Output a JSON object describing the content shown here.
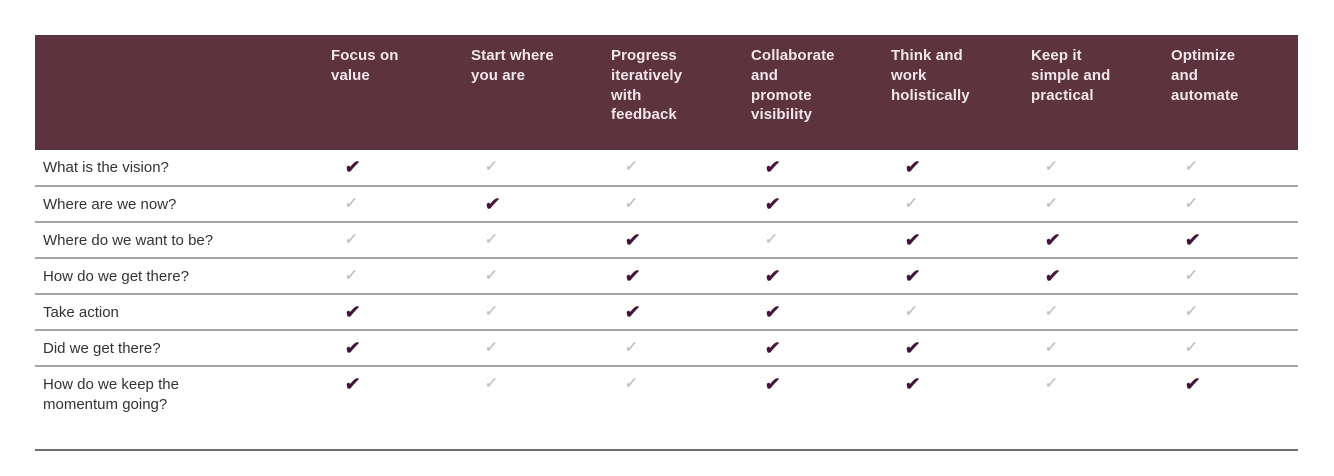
{
  "table": {
    "corner_label": "",
    "columns": [
      "Focus on\nvalue",
      "Start where\nyou are",
      "Progress\niteratively\nwith\nfeedback",
      "Collaborate\nand\npromote\nvisibility",
      "Think and\nwork\nholistically",
      "Keep it\nsimple and\npractical",
      "Optimize\nand\nautomate"
    ],
    "rows": [
      {
        "label": "What is the vision?",
        "checks": [
          "strong",
          "weak",
          "weak",
          "strong",
          "strong",
          "weak",
          "weak"
        ]
      },
      {
        "label": "Where are we now?",
        "checks": [
          "weak",
          "strong",
          "weak",
          "strong",
          "weak",
          "weak",
          "weak"
        ]
      },
      {
        "label": "Where do we want to be?",
        "checks": [
          "weak",
          "weak",
          "strong",
          "weak",
          "strong",
          "strong",
          "strong"
        ]
      },
      {
        "label": "How do we get there?",
        "checks": [
          "weak",
          "weak",
          "strong",
          "strong",
          "strong",
          "strong",
          "weak"
        ]
      },
      {
        "label": "Take action",
        "checks": [
          "strong",
          "weak",
          "strong",
          "strong",
          "weak",
          "weak",
          "weak"
        ]
      },
      {
        "label": "Did we get there?",
        "checks": [
          "strong",
          "weak",
          "weak",
          "strong",
          "strong",
          "weak",
          "weak"
        ]
      },
      {
        "label": "How do we keep the\nmomentum going?",
        "checks": [
          "strong",
          "weak",
          "weak",
          "strong",
          "strong",
          "weak",
          "strong"
        ]
      }
    ],
    "glyphs": {
      "strong": "✔",
      "weak": "✓"
    },
    "colors": {
      "header_bg": "#5c333e",
      "header_text": "#f1e6e9",
      "strong_check": "#451539",
      "weak_check": "#c4c4c4",
      "row_label": "#333333",
      "row_separator": "#a5a5a5",
      "bottom_border": "#6e6e6e"
    }
  }
}
